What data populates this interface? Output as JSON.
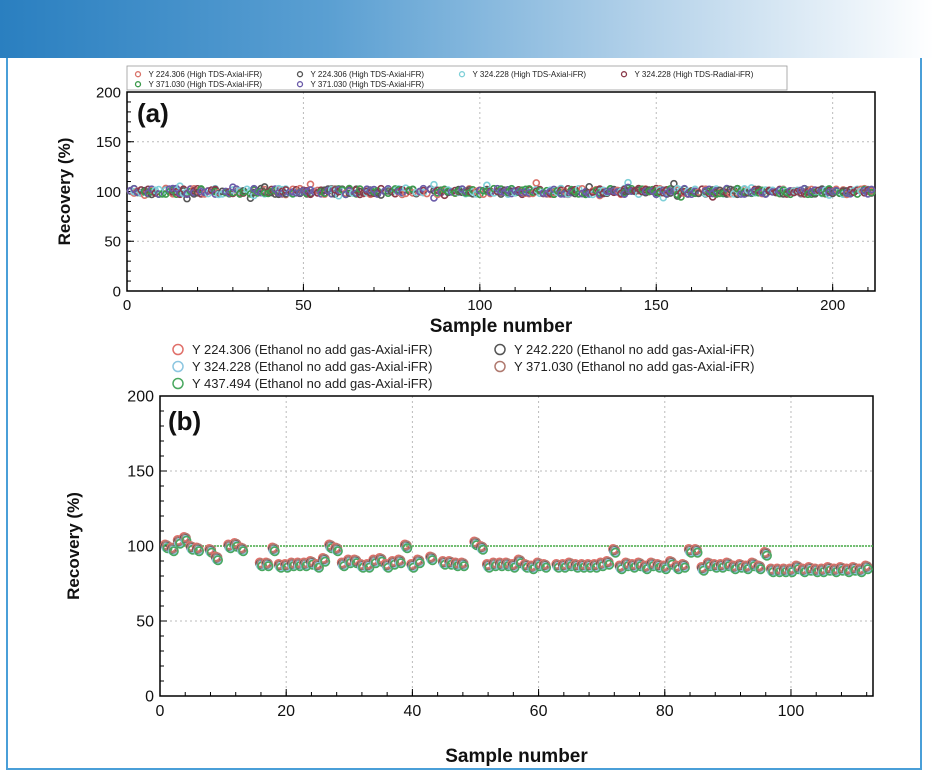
{
  "colors": {
    "banner_start": "#2a7fc0",
    "frame_border": "#4a9fd8",
    "target_line": "#44aa44"
  },
  "chart_data": [
    {
      "type": "scatter",
      "panel_label": "(a)",
      "xlabel": "Sample number",
      "ylabel": "Recovery (%)",
      "xlim": [
        0,
        212
      ],
      "ylim": [
        0,
        200
      ],
      "x_ticks": [
        0,
        50,
        100,
        150,
        200
      ],
      "y_ticks": [
        0,
        50,
        100,
        150,
        200
      ],
      "grid": true,
      "legend_placement": "top",
      "series": [
        {
          "name": "Y 224.306 (High TDS-Axial-iFR)",
          "color": "#d9736a",
          "base": 100,
          "amp": 3
        },
        {
          "name": "Y 224.306 (High TDS-Axial-iFR)",
          "color": "#555555",
          "base": 100,
          "amp": 3
        },
        {
          "name": "Y 324.228 (High TDS-Axial-iFR)",
          "color": "#7fd0d8",
          "base": 100,
          "amp": 3
        },
        {
          "name": "Y 324.228 (High TDS-Radial-iFR)",
          "color": "#8a3a4a",
          "base": 100,
          "amp": 3
        },
        {
          "name": "Y 371.030 (High TDS-Axial-iFR)",
          "color": "#3c9a4c",
          "base": 100,
          "amp": 3
        },
        {
          "name": "Y 371.030 (High TDS-Axial-iFR)",
          "color": "#6a5aa8",
          "base": 100,
          "amp": 3
        }
      ]
    },
    {
      "type": "scatter",
      "panel_label": "(b)",
      "xlabel": "Sample number",
      "ylabel": "Recovery (%)",
      "xlim": [
        0,
        113
      ],
      "ylim": [
        0,
        200
      ],
      "x_ticks": [
        0,
        20,
        40,
        60,
        80,
        100
      ],
      "y_ticks": [
        0,
        50,
        100,
        150,
        200
      ],
      "grid": true,
      "legend_placement": "top",
      "reference_line": 100,
      "x": [
        1,
        2,
        3,
        4,
        5,
        6,
        8,
        9,
        11,
        12,
        13,
        16,
        17,
        18,
        19,
        20,
        21,
        22,
        23,
        24,
        25,
        26,
        27,
        28,
        29,
        30,
        31,
        32,
        33,
        34,
        35,
        36,
        37,
        38,
        39,
        40,
        41,
        43,
        45,
        46,
        47,
        48,
        50,
        51,
        52,
        53,
        54,
        55,
        56,
        57,
        58,
        59,
        60,
        61,
        63,
        64,
        65,
        66,
        67,
        68,
        69,
        70,
        71,
        72,
        73,
        74,
        75,
        76,
        77,
        78,
        79,
        80,
        81,
        82,
        83,
        84,
        85,
        86,
        87,
        88,
        89,
        90,
        91,
        92,
        93,
        94,
        95,
        96,
        97,
        98,
        99,
        100,
        101,
        102,
        103,
        104,
        105,
        106,
        107,
        108,
        109,
        110,
        111,
        112
      ],
      "y": [
        100,
        98,
        103,
        105,
        99,
        98,
        97,
        92,
        100,
        101,
        98,
        88,
        88,
        98,
        87,
        87,
        88,
        88,
        88,
        89,
        87,
        91,
        100,
        98,
        88,
        90,
        90,
        87,
        87,
        90,
        91,
        87,
        89,
        90,
        100,
        87,
        90,
        92,
        89,
        89,
        88,
        88,
        102,
        99,
        87,
        88,
        88,
        88,
        87,
        90,
        87,
        86,
        88,
        87,
        87,
        87,
        88,
        87,
        87,
        87,
        87,
        88,
        89,
        97,
        86,
        88,
        87,
        88,
        86,
        88,
        87,
        86,
        89,
        86,
        87,
        97,
        97,
        85,
        88,
        87,
        87,
        88,
        86,
        87,
        86,
        88,
        86,
        95,
        84,
        84,
        84,
        84,
        86,
        84,
        85,
        84,
        84,
        85,
        84,
        85,
        84,
        85,
        84,
        86
      ],
      "series": [
        {
          "name": "Y 224.306 (Ethanol no add gas-Axial-iFR)",
          "color": "#e0706a",
          "offset": 1
        },
        {
          "name": "Y 242.220 (Ethanol no add gas-Axial-iFR)",
          "color": "#555555",
          "offset": 0
        },
        {
          "name": "Y 324.228 (Ethanol no add gas-Axial-iFR)",
          "color": "#8cc6e0",
          "offset": -1
        },
        {
          "name": "Y 371.030 (Ethanol no add gas-Axial-iFR)",
          "color": "#b07a70",
          "offset": 0.5
        },
        {
          "name": "Y 437.494 (Ethanol no add gas-Axial-iFR)",
          "color": "#4aa860",
          "offset": -1.5
        }
      ]
    }
  ]
}
